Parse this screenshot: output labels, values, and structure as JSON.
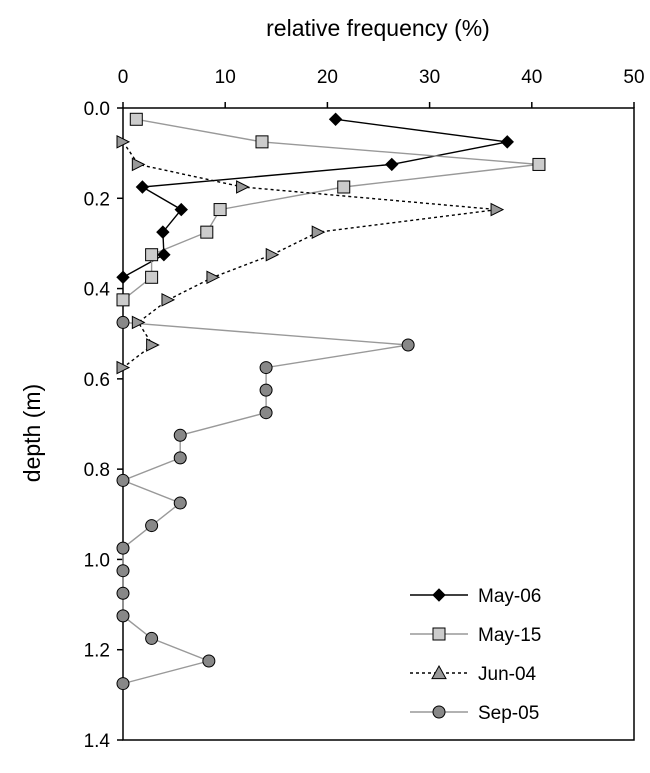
{
  "chart_data": {
    "type": "line",
    "title": "",
    "xlabel": "relative frequency (%)",
    "ylabel": "depth (m)",
    "xlim": [
      0,
      50
    ],
    "ylim": [
      0,
      1.4
    ],
    "x_ticks": [
      "0",
      "10",
      "20",
      "30",
      "40",
      "50"
    ],
    "y_ticks": [
      "0.0",
      "0.2",
      "0.4",
      "0.6",
      "0.8",
      "1.0",
      "1.2",
      "1.4"
    ],
    "x_axis_position": "top",
    "y_axis_inverted": true,
    "grid": false,
    "legend_position": "bottom-right",
    "series": [
      {
        "name": "May-06",
        "marker": "diamond",
        "line": "solid",
        "color": "#000000",
        "marker_fill": "#000000",
        "points": [
          {
            "x": 20.8,
            "y": 0.025
          },
          {
            "x": 37.6,
            "y": 0.075
          },
          {
            "x": 26.3,
            "y": 0.125
          },
          {
            "x": 1.9,
            "y": 0.175
          },
          {
            "x": 5.7,
            "y": 0.225
          },
          {
            "x": 3.9,
            "y": 0.275
          },
          {
            "x": 4.0,
            "y": 0.325
          },
          {
            "x": 0.0,
            "y": 0.375
          }
        ]
      },
      {
        "name": "May-15",
        "marker": "square",
        "line": "solid",
        "color": "#999999",
        "marker_fill": "#cccccc",
        "points": [
          {
            "x": 1.3,
            "y": 0.025
          },
          {
            "x": 13.6,
            "y": 0.075
          },
          {
            "x": 40.7,
            "y": 0.125
          },
          {
            "x": 21.6,
            "y": 0.175
          },
          {
            "x": 9.5,
            "y": 0.225
          },
          {
            "x": 8.2,
            "y": 0.275
          },
          {
            "x": 2.8,
            "y": 0.325
          },
          {
            "x": 2.8,
            "y": 0.375
          },
          {
            "x": 0.0,
            "y": 0.425
          }
        ]
      },
      {
        "name": "Jun-04",
        "marker": "triangle",
        "line": "dotted",
        "color": "#000000",
        "marker_fill": "#999999",
        "points": [
          {
            "x": 0.0,
            "y": 0.075
          },
          {
            "x": 1.5,
            "y": 0.125
          },
          {
            "x": 11.7,
            "y": 0.175
          },
          {
            "x": 36.6,
            "y": 0.225
          },
          {
            "x": 19.1,
            "y": 0.275
          },
          {
            "x": 14.6,
            "y": 0.325
          },
          {
            "x": 8.8,
            "y": 0.375
          },
          {
            "x": 4.4,
            "y": 0.425
          },
          {
            "x": 1.5,
            "y": 0.475
          },
          {
            "x": 2.9,
            "y": 0.525
          },
          {
            "x": 0.0,
            "y": 0.575
          }
        ]
      },
      {
        "name": "Sep-05",
        "marker": "circle",
        "line": "solid",
        "color": "#999999",
        "marker_fill": "#888888",
        "points": [
          {
            "x": 0.0,
            "y": 0.475
          },
          {
            "x": 27.9,
            "y": 0.525
          },
          {
            "x": 14.0,
            "y": 0.575
          },
          {
            "x": 14.0,
            "y": 0.625
          },
          {
            "x": 14.0,
            "y": 0.675
          },
          {
            "x": 5.6,
            "y": 0.725
          },
          {
            "x": 5.6,
            "y": 0.775
          },
          {
            "x": 0.0,
            "y": 0.825
          },
          {
            "x": 5.6,
            "y": 0.875
          },
          {
            "x": 2.8,
            "y": 0.925
          },
          {
            "x": 0.0,
            "y": 0.975
          },
          {
            "x": 0.0,
            "y": 1.025
          },
          {
            "x": 0.0,
            "y": 1.075
          },
          {
            "x": 0.0,
            "y": 1.125
          },
          {
            "x": 2.8,
            "y": 1.175
          },
          {
            "x": 8.4,
            "y": 1.225
          },
          {
            "x": 0.0,
            "y": 1.275
          }
        ]
      }
    ]
  }
}
